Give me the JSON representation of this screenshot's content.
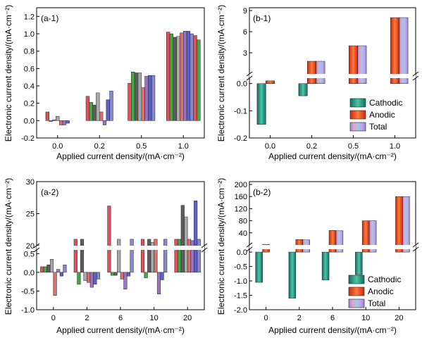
{
  "colors": {
    "cathodic": "#1f9a84",
    "anodic": "#e8421e",
    "total": "#b6a3e8",
    "multi": [
      "#e05058",
      "#43a844",
      "#5d5d5d",
      "#a8a8a8",
      "#d87070",
      "#9a74c4",
      "#5a62c8",
      "#8888cc"
    ]
  },
  "legend": {
    "cathodic": "Cathodic",
    "anodic": "Anodic",
    "total": "Total"
  },
  "chart_data": [
    {
      "id": "a-1",
      "tag": "(a-1)",
      "type": "bar",
      "xlabel": "Applied current density/(mA·cm⁻²)",
      "ylabel": "Electronic current density/(mA·cm⁻²)",
      "ylim": [
        -0.2,
        1.3
      ],
      "yticks": [
        "-0.2",
        "0.0",
        "0.2",
        "0.4",
        "0.6",
        "0.8",
        "1.0",
        "1.2"
      ],
      "categories": [
        "0.0",
        "0.2",
        "0.5",
        "1.0"
      ],
      "groups": [
        [
          0.1,
          -0.01,
          0.01,
          0.05,
          -0.05,
          -0.05,
          -0.03
        ],
        [
          0.28,
          0.21,
          0.18,
          0.32,
          0.1,
          -0.05,
          0.24,
          0.34
        ],
        [
          0.43,
          0.56,
          0.55,
          0.55,
          0.38,
          0.51,
          0.52,
          0.52
        ],
        [
          1.02,
          1.0,
          0.96,
          0.97,
          1.01,
          1.03,
          1.03,
          1.0,
          0.98,
          0.93
        ]
      ]
    },
    {
      "id": "b-1",
      "tag": "(b-1)",
      "type": "bar",
      "xlabel": "Applied current density/(mA·cm⁻²)",
      "ylabel": "Electronic current density/(mA·cm⁻²)",
      "upper_ylim": [
        0,
        9
      ],
      "upper_yticks": [
        "3",
        "6",
        "9"
      ],
      "lower_ylim": [
        -0.2,
        0.02
      ],
      "lower_yticks": [
        "-0.2",
        "-0.1",
        "0.0"
      ],
      "categories": [
        "0.0",
        "0.2",
        "0.5",
        "1.0"
      ],
      "series": [
        {
          "name": "Cathodic",
          "values": [
            -0.15,
            -0.045,
            0,
            0
          ]
        },
        {
          "name": "Anodic",
          "values": [
            0.01,
            1.8,
            4.0,
            8.0
          ]
        },
        {
          "name": "Total",
          "values": [
            0,
            1.8,
            4.0,
            8.0
          ]
        }
      ]
    },
    {
      "id": "a-2",
      "tag": "(a-2)",
      "type": "bar",
      "xlabel": "Applied current density/(mA·cm⁻²)",
      "ylabel": "Electronic current density/(mA·cm⁻²)",
      "upper_ylim": [
        20,
        30
      ],
      "upper_yticks": [
        "20",
        "25",
        "30"
      ],
      "lower_ylim": [
        -1.0,
        0.6
      ],
      "lower_yticks": [
        "-1.0",
        "-0.5",
        "0.0",
        "0.5"
      ],
      "categories": [
        "0",
        "2",
        "6",
        "10",
        "20"
      ],
      "groups": [
        [
          0.15,
          0.15,
          0.2,
          0.35,
          -0.62,
          0.08,
          -0.1,
          0.2
        ],
        [
          21.0,
          -0.32,
          21.0,
          -0.22,
          -0.27,
          -0.4,
          -0.32,
          -0.18
        ],
        [
          26.2,
          -0.08,
          -0.08,
          21.0,
          -0.18,
          -0.45,
          -0.1,
          21.0
        ],
        [
          21.0,
          -0.15,
          21.0,
          20.5,
          21.0,
          -0.58,
          -0.2,
          21.0
        ],
        [
          21.0,
          21.0,
          26.3,
          24.5,
          21.0,
          20.8,
          27.0,
          21.0
        ]
      ]
    },
    {
      "id": "b-2",
      "tag": "(b-2)",
      "type": "bar",
      "xlabel": "Applied current density/(mA·cm⁻²)",
      "ylabel": "Electronic current density/(mA·cm⁻²)",
      "upper_ylim": [
        0,
        200
      ],
      "upper_yticks": [
        "40",
        "80",
        "120",
        "160",
        "200"
      ],
      "lower_ylim": [
        -2.0,
        0.1
      ],
      "lower_yticks": [
        "-2.0",
        "-1.5",
        "-1.0",
        "-0.5",
        "0.0"
      ],
      "categories": [
        "0",
        "2",
        "6",
        "10",
        "20"
      ],
      "series": [
        {
          "name": "Cathodic",
          "values": [
            -1.05,
            -1.6,
            -0.97,
            -0.78,
            0
          ]
        },
        {
          "name": "Anodic",
          "values": [
            2,
            18,
            48,
            80,
            160
          ]
        },
        {
          "name": "Total",
          "values": [
            0,
            17,
            47,
            80,
            160
          ]
        }
      ]
    }
  ]
}
